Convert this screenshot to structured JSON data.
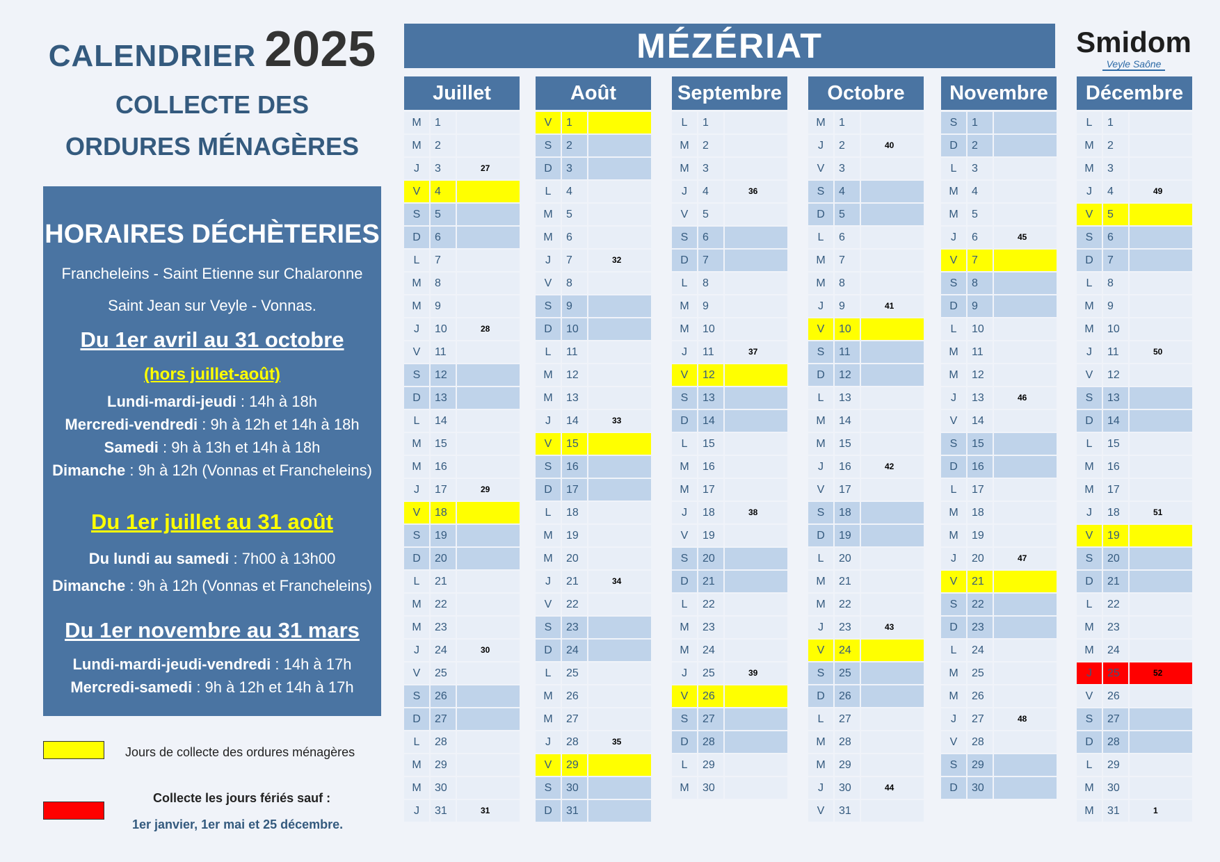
{
  "header": {
    "title_word": "CALENDRIER",
    "title_year": "2025",
    "subtitle_line1": "COLLECTE DES",
    "subtitle_line2": "ORDURES MÉNAGÈRES",
    "commune": "MÉZÉRIAT"
  },
  "logo": {
    "name": "Smidom",
    "tagline": "Veyle Saône"
  },
  "horaires": {
    "title": "HORAIRES DÉCHÈTERIES",
    "sites_line1": "Francheleins - Saint Etienne sur Chalaronne",
    "sites_line2": "Saint Jean sur Veyle - Vonnas.",
    "period1": "Du 1er avril au 31 octobre",
    "period1_note": "(hors juillet-août)",
    "p1_l1_k": "Lundi-mardi-jeudi",
    "p1_l1_v": " : 14h à 18h",
    "p1_l2_k": "Mercredi-vendredi",
    "p1_l2_v": " : 9h à 12h et 14h à 18h",
    "p1_l3_k": "Samedi",
    "p1_l3_v": " : 9h à 13h et 14h à 18h",
    "p1_l4_k": "Dimanche",
    "p1_l4_v": " : 9h à 12h (Vonnas et Francheleins)",
    "period2": "Du 1er juillet au 31 août",
    "p2_l1_k": "Du lundi au samedi",
    "p2_l1_v": " : 7h00 à 13h00",
    "p2_l2_k": "Dimanche",
    "p2_l2_v": " : 9h à 12h (Vonnas et Francheleins)",
    "period3": "Du 1er novembre au 31 mars",
    "p3_l1_k": "Lundi-mardi-jeudi-vendredi",
    "p3_l1_v": " : 14h à 17h",
    "p3_l2_k": "Mercredi-samedi",
    "p3_l2_v": " : 9h à 12h et 14h à 17h"
  },
  "legend": {
    "yellow_color": "#ffff00",
    "red_color": "#ff0000",
    "yellow_label": "Jours de collecte des ordures ménagères",
    "red_label_line1": "Collecte les jours fériés sauf :",
    "red_label_line2": "1er janvier, 1er mai et 25 décembre."
  },
  "months": [
    {
      "name": "Juillet",
      "first_dow": 1,
      "days": 31,
      "collect": [
        4,
        18
      ],
      "ferie": [],
      "weeks": {
        "3": "27",
        "10": "28",
        "17": "29",
        "24": "30",
        "31": "31"
      }
    },
    {
      "name": "Août",
      "first_dow": 4,
      "days": 31,
      "collect": [
        1,
        15,
        29
      ],
      "ferie": [],
      "weeks": {
        "7": "32",
        "14": "33",
        "21": "34",
        "28": "35"
      }
    },
    {
      "name": "Septembre",
      "first_dow": 0,
      "days": 30,
      "collect": [
        12,
        26
      ],
      "ferie": [],
      "weeks": {
        "4": "36",
        "11": "37",
        "18": "38",
        "25": "39"
      }
    },
    {
      "name": "Octobre",
      "first_dow": 2,
      "days": 31,
      "collect": [
        10,
        24
      ],
      "ferie": [],
      "weeks": {
        "2": "40",
        "9": "41",
        "16": "42",
        "23": "43",
        "30": "44"
      }
    },
    {
      "name": "Novembre",
      "first_dow": 5,
      "days": 30,
      "collect": [
        7,
        21
      ],
      "ferie": [],
      "weeks": {
        "6": "45",
        "13": "46",
        "20": "47",
        "27": "48"
      }
    },
    {
      "name": "Décembre",
      "first_dow": 0,
      "days": 31,
      "collect": [
        5,
        19
      ],
      "ferie": [
        25
      ],
      "weeks": {
        "4": "49",
        "11": "50",
        "18": "51",
        "25": "52",
        "31": "1"
      }
    }
  ],
  "day_letters": [
    "L",
    "M",
    "M",
    "J",
    "V",
    "S",
    "D"
  ]
}
